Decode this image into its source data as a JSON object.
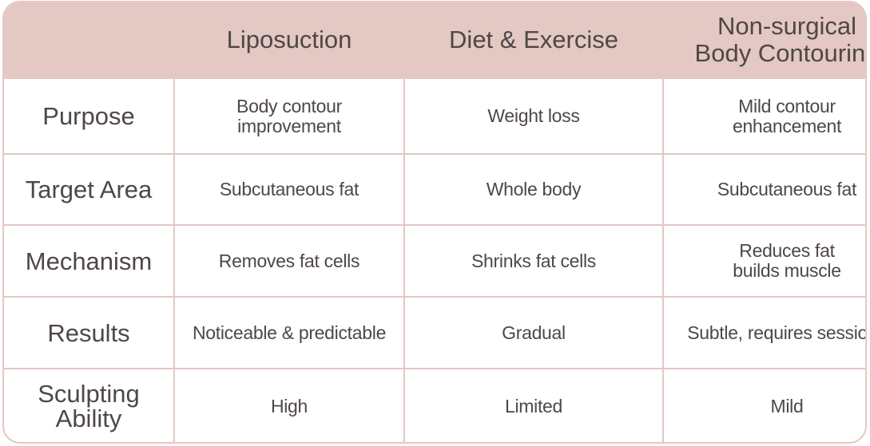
{
  "header": {
    "blank": "",
    "col1": "Liposuction",
    "col2": "Diet & Exercise",
    "col3_line1": "Non-surgical",
    "col3_line2": "Body Contouring"
  },
  "rows": [
    {
      "label_line1": "Purpose",
      "label_line2": "",
      "lipo_line1": "Body contour",
      "lipo_line2": "improvement",
      "diet_line1": "Weight loss",
      "diet_line2": "",
      "nonsurg_line1": "Mild contour",
      "nonsurg_line2": "enhancement"
    },
    {
      "label_line1": "Target Area",
      "label_line2": "",
      "lipo_line1": "Subcutaneous fat",
      "lipo_line2": "",
      "diet_line1": "Whole body",
      "diet_line2": "",
      "nonsurg_line1": "Subcutaneous fat",
      "nonsurg_line2": ""
    },
    {
      "label_line1": "Mechanism",
      "label_line2": "",
      "lipo_line1": "Removes fat cells",
      "lipo_line2": "",
      "diet_line1": "Shrinks fat cells",
      "diet_line2": "",
      "nonsurg_line1": "Reduces fat",
      "nonsurg_line2": "builds muscle"
    },
    {
      "label_line1": "Results",
      "label_line2": "",
      "lipo_line1": "Noticeable & predictable",
      "lipo_line2": "",
      "diet_line1": "Gradual",
      "diet_line2": "",
      "nonsurg_line1": "Subtle, requires sessions",
      "nonsurg_line2": ""
    },
    {
      "label_line1": "Sculpting",
      "label_line2": "Ability",
      "lipo_line1": "High",
      "lipo_line2": "",
      "diet_line1": "Limited",
      "diet_line2": "",
      "nonsurg_line1": "Mild",
      "nonsurg_line2": ""
    }
  ],
  "colors": {
    "header_bg": "#e3c8c3",
    "border": "#e3c8c3",
    "text": "#4f4747"
  }
}
